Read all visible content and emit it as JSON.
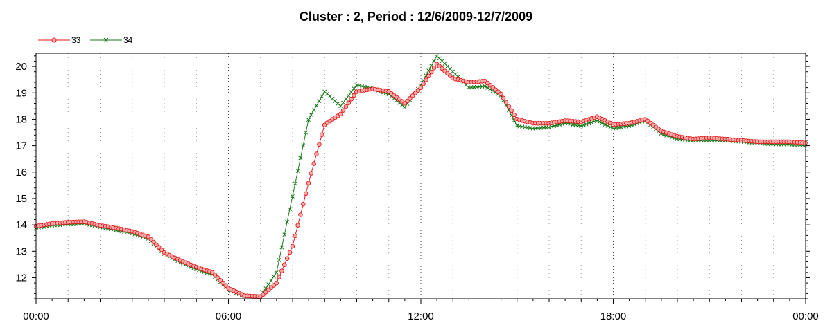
{
  "chart_data": {
    "type": "line",
    "title": "Cluster : 2, Period : 12/6/2009-12/7/2009",
    "xlabel": "",
    "ylabel": "",
    "x_ticks": [
      "00:00",
      "06:00",
      "12:00",
      "18:00",
      "00:00"
    ],
    "x_range_hours": [
      0,
      24
    ],
    "y_ticks": [
      "12",
      "13",
      "14",
      "15",
      "16",
      "17",
      "18",
      "19",
      "20"
    ],
    "ylim": [
      11.2,
      20.5
    ],
    "grid": "vertical dotted",
    "legend_position": "top-left",
    "x_hours": [
      0,
      0.5,
      1,
      1.5,
      2,
      2.5,
      3,
      3.5,
      4,
      4.5,
      5,
      5.5,
      6,
      6.5,
      7,
      7.5,
      8,
      8.5,
      9,
      9.5,
      10,
      10.5,
      11,
      11.5,
      12,
      12.5,
      13,
      13.5,
      14,
      14.5,
      15,
      15.5,
      16,
      16.5,
      17,
      17.5,
      18,
      18.5,
      19,
      19.5,
      20,
      20.5,
      21,
      21.5,
      22,
      22.5,
      23,
      23.5,
      24
    ],
    "series": [
      {
        "name": "33",
        "color": "#e31a1c",
        "marker": "circle",
        "values": [
          13.95,
          14.05,
          14.1,
          14.12,
          13.98,
          13.88,
          13.75,
          13.55,
          12.95,
          12.65,
          12.4,
          12.2,
          11.6,
          11.32,
          11.28,
          11.8,
          13.2,
          15.6,
          17.8,
          18.2,
          19.05,
          19.15,
          19.05,
          18.6,
          19.2,
          20.1,
          19.55,
          19.4,
          19.45,
          18.95,
          18.0,
          17.85,
          17.85,
          17.95,
          17.9,
          18.1,
          17.8,
          17.85,
          18.0,
          17.55,
          17.35,
          17.25,
          17.3,
          17.25,
          17.2,
          17.15,
          17.15,
          17.15,
          17.1
        ]
      },
      {
        "name": "34",
        "color": "#1a7a1a",
        "marker": "cross",
        "values": [
          13.88,
          13.98,
          14.02,
          14.05,
          13.92,
          13.8,
          13.68,
          13.48,
          12.9,
          12.58,
          12.32,
          12.12,
          11.55,
          11.3,
          11.3,
          12.2,
          15.1,
          18.0,
          19.05,
          18.5,
          19.3,
          19.15,
          18.95,
          18.45,
          19.3,
          20.4,
          19.8,
          19.2,
          19.25,
          18.9,
          17.75,
          17.65,
          17.7,
          17.85,
          17.75,
          17.95,
          17.65,
          17.75,
          17.95,
          17.45,
          17.25,
          17.2,
          17.2,
          17.2,
          17.15,
          17.1,
          17.05,
          17.05,
          17.0
        ]
      }
    ]
  }
}
